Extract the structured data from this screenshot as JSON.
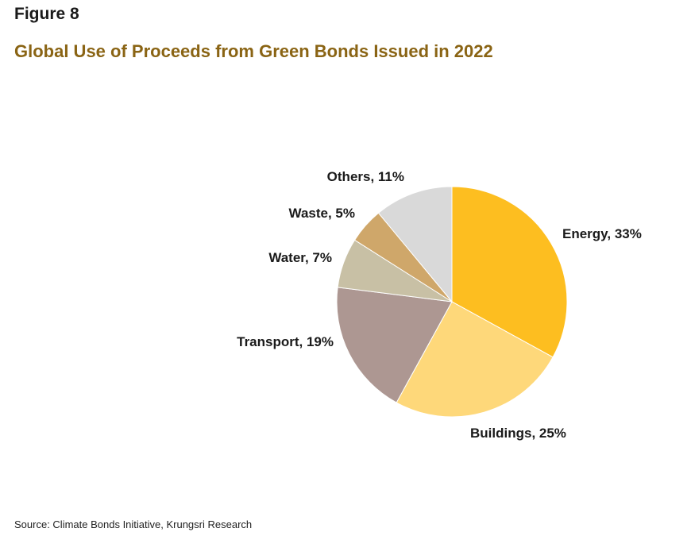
{
  "figure_label": "Figure 8",
  "source": "Source: Climate Bonds Initiative, Krungsri Research",
  "chart_data": {
    "type": "pie",
    "title": "Global Use of Proceeds from Green Bonds Issued in 2022",
    "slices": [
      {
        "name": "Energy",
        "value": 33,
        "label": "Energy, 33%",
        "color": "#FDBE20"
      },
      {
        "name": "Buildings",
        "value": 25,
        "label": "Buildings, 25%",
        "color": "#FED87A"
      },
      {
        "name": "Transport",
        "value": 19,
        "label": "Transport, 19%",
        "color": "#AD9792"
      },
      {
        "name": "Water",
        "value": 7,
        "label": "Water, 7%",
        "color": "#C8C0A5"
      },
      {
        "name": "Waste",
        "value": 5,
        "label": "Waste, 5%",
        "color": "#CFA76A"
      },
      {
        "name": "Others",
        "value": 11,
        "label": "Others, 11%",
        "color": "#D9D9D9"
      }
    ]
  }
}
